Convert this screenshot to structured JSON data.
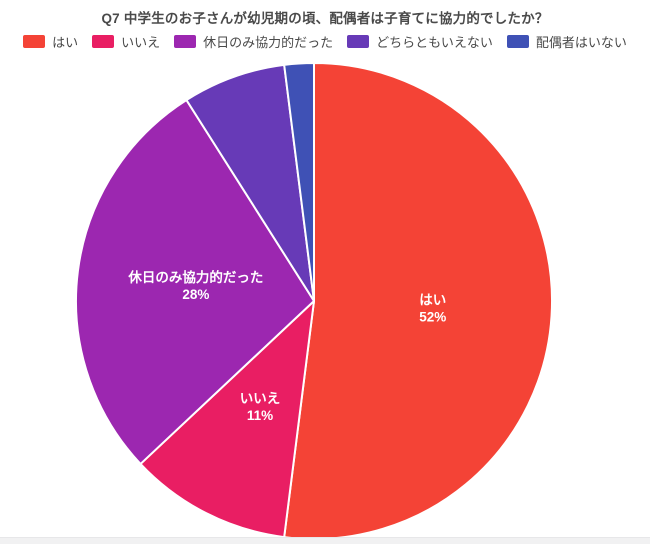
{
  "title": "Q7 中学生のお子さんが幼児期の頃、配偶者は子育てに協力的でしたか？",
  "legend": {
    "position": "top",
    "items": [
      {
        "label": "はい",
        "color": "#F44336"
      },
      {
        "label": "いいえ",
        "color": "#E91E63"
      },
      {
        "label": "休日のみ協力的だった",
        "color": "#9C27B0"
      },
      {
        "label": "どちらともいえない",
        "color": "#673AB7"
      },
      {
        "label": "配偶者はいない",
        "color": "#3F51B5"
      }
    ]
  },
  "chart_data": {
    "type": "pie",
    "title": "Q7 中学生のお子さんが幼児期の頃、配偶者は子育てに協力的でしたか？",
    "categories": [
      "はい",
      "いいえ",
      "休日のみ協力的だった",
      "どちらともいえない",
      "配偶者はいない"
    ],
    "values": [
      52,
      11,
      28,
      7,
      2
    ],
    "unit": "%",
    "colors": [
      "#F44336",
      "#E91E63",
      "#9C27B0",
      "#673AB7",
      "#3F51B5"
    ],
    "start_angle_deg": 0,
    "direction": "clockwise",
    "slice_label_min_pct": 10,
    "slice_labels_shown": [
      "はい 52%",
      "いいえ 11%",
      "休日のみ協力的だった 28%"
    ],
    "legend_position": "top"
  },
  "styles": {
    "background": "#ffffff",
    "title_color": "#4a4a4a",
    "legend_text_color": "#4a4a4a",
    "slice_label_color": "#ffffff",
    "slice_border_color": "#ffffff",
    "bottom_divider_color": "#f1f1f2"
  }
}
